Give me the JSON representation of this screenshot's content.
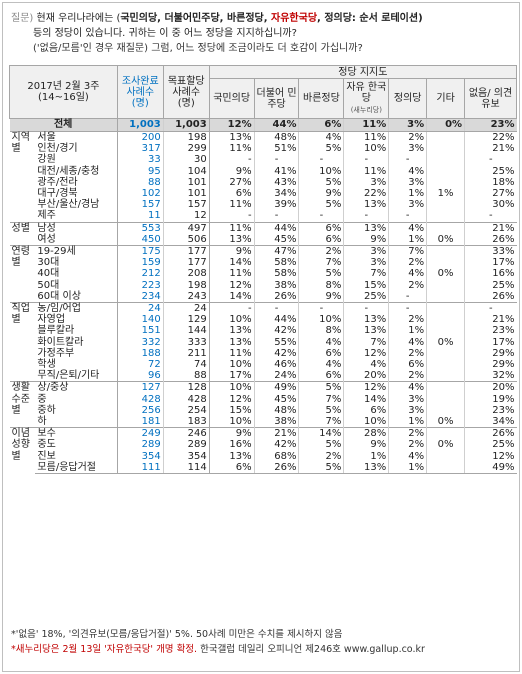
{
  "question": {
    "label": "질문)",
    "line1_plain": "현재 우리나라에는 (",
    "parties": [
      {
        "name": "국민의당",
        "red": false
      },
      {
        "name": "더불어민주당",
        "red": false
      },
      {
        "name": "바른정당",
        "red": false
      },
      {
        "name": "자유한국당",
        "red": true
      },
      {
        "name": "정의당",
        "red": false
      }
    ],
    "line1_tail": ": 순서 로테이션)",
    "line2": "등의 정당이 있습니다. 귀하는 이 중 어느 정당을 지지하십니까?",
    "line3": "('없음/모름'인 경우 재질문) 그럼, 어느 정당에 조금이라도 더 호감이 가십니까?"
  },
  "table": {
    "header": {
      "period_line1": "2017년 2월 3주",
      "period_line2": "(14~16일)",
      "col_complete": "조사완료 사례수 (명)",
      "col_weighted": "목표할당 사례수 (명)",
      "support_group": "정당 지지도",
      "parties": [
        "국민의당",
        "더불어 민주당",
        "바른정당",
        "자유 한국당",
        "정의당",
        "기타",
        "없음/ 의견유보"
      ],
      "jayu_note": "(새누리당)"
    },
    "total": {
      "label": "전체",
      "n": "1,003",
      "w": "1,003",
      "vals": [
        "12%",
        "44%",
        "6%",
        "11%",
        "3%",
        "0%",
        "23%"
      ]
    },
    "groups": [
      {
        "name": "지역별",
        "rows": [
          {
            "label": "서울",
            "n": "200",
            "w": "198",
            "vals": [
              "13%",
              "48%",
              "4%",
              "11%",
              "2%",
              "",
              "22%"
            ]
          },
          {
            "label": "인천/경기",
            "n": "317",
            "w": "299",
            "vals": [
              "11%",
              "51%",
              "5%",
              "10%",
              "3%",
              "",
              "21%"
            ]
          },
          {
            "label": "강원",
            "n": "33",
            "w": "30",
            "vals": [
              "-",
              "-",
              "-",
              "-",
              "-",
              "",
              "-"
            ]
          },
          {
            "label": "대전/세종/충청",
            "n": "95",
            "w": "104",
            "vals": [
              "9%",
              "41%",
              "10%",
              "11%",
              "4%",
              "",
              "25%"
            ]
          },
          {
            "label": "광주/전라",
            "n": "88",
            "w": "101",
            "vals": [
              "27%",
              "43%",
              "5%",
              "3%",
              "3%",
              "",
              "18%"
            ]
          },
          {
            "label": "대구/경북",
            "n": "102",
            "w": "101",
            "vals": [
              "6%",
              "34%",
              "9%",
              "22%",
              "1%",
              "1%",
              "27%"
            ]
          },
          {
            "label": "부산/울산/경남",
            "n": "157",
            "w": "157",
            "vals": [
              "11%",
              "39%",
              "5%",
              "13%",
              "3%",
              "",
              "30%"
            ]
          },
          {
            "label": "제주",
            "n": "11",
            "w": "12",
            "vals": [
              "-",
              "-",
              "-",
              "-",
              "-",
              "",
              "-"
            ]
          }
        ]
      },
      {
        "name": "성별",
        "rows": [
          {
            "label": "남성",
            "n": "553",
            "w": "497",
            "vals": [
              "11%",
              "44%",
              "6%",
              "13%",
              "4%",
              "",
              "21%"
            ]
          },
          {
            "label": "여성",
            "n": "450",
            "w": "506",
            "vals": [
              "13%",
              "45%",
              "6%",
              "9%",
              "1%",
              "0%",
              "26%"
            ]
          }
        ]
      },
      {
        "name": "연령별",
        "rows": [
          {
            "label": "19-29세",
            "n": "175",
            "w": "177",
            "vals": [
              "9%",
              "47%",
              "2%",
              "3%",
              "7%",
              "",
              "33%"
            ]
          },
          {
            "label": "30대",
            "n": "159",
            "w": "177",
            "vals": [
              "14%",
              "58%",
              "7%",
              "3%",
              "2%",
              "",
              "17%"
            ]
          },
          {
            "label": "40대",
            "n": "212",
            "w": "208",
            "vals": [
              "11%",
              "58%",
              "5%",
              "7%",
              "4%",
              "0%",
              "16%"
            ]
          },
          {
            "label": "50대",
            "n": "223",
            "w": "198",
            "vals": [
              "12%",
              "38%",
              "8%",
              "15%",
              "2%",
              "",
              "25%"
            ]
          },
          {
            "label": "60대 이상",
            "n": "234",
            "w": "243",
            "vals": [
              "14%",
              "26%",
              "9%",
              "25%",
              "-",
              "",
              "26%"
            ]
          }
        ]
      },
      {
        "name": "직업별",
        "rows": [
          {
            "label": "농/임/어업",
            "n": "24",
            "w": "24",
            "vals": [
              "-",
              "-",
              "-",
              "-",
              "-",
              "",
              "-"
            ]
          },
          {
            "label": "자영업",
            "n": "140",
            "w": "129",
            "vals": [
              "10%",
              "44%",
              "10%",
              "13%",
              "2%",
              "",
              "21%"
            ]
          },
          {
            "label": "블루칼라",
            "n": "151",
            "w": "144",
            "vals": [
              "13%",
              "42%",
              "8%",
              "13%",
              "1%",
              "",
              "23%"
            ]
          },
          {
            "label": "화이트칼라",
            "n": "332",
            "w": "333",
            "vals": [
              "13%",
              "55%",
              "4%",
              "7%",
              "4%",
              "0%",
              "17%"
            ]
          },
          {
            "label": "가정주부",
            "n": "188",
            "w": "211",
            "vals": [
              "11%",
              "42%",
              "6%",
              "12%",
              "2%",
              "",
              "29%"
            ]
          },
          {
            "label": "학생",
            "n": "72",
            "w": "74",
            "vals": [
              "10%",
              "46%",
              "4%",
              "4%",
              "6%",
              "",
              "29%"
            ]
          },
          {
            "label": "무직/은퇴/기타",
            "n": "96",
            "w": "88",
            "vals": [
              "17%",
              "24%",
              "6%",
              "20%",
              "2%",
              "",
              "32%"
            ]
          }
        ]
      },
      {
        "name": "생활 수준별",
        "rows": [
          {
            "label": "상/중상",
            "n": "127",
            "w": "128",
            "vals": [
              "10%",
              "49%",
              "5%",
              "12%",
              "4%",
              "",
              "20%"
            ]
          },
          {
            "label": "중",
            "n": "428",
            "w": "428",
            "vals": [
              "12%",
              "45%",
              "7%",
              "14%",
              "3%",
              "",
              "19%"
            ]
          },
          {
            "label": "중하",
            "n": "256",
            "w": "254",
            "vals": [
              "15%",
              "48%",
              "5%",
              "6%",
              "3%",
              "",
              "23%"
            ]
          },
          {
            "label": "하",
            "n": "181",
            "w": "183",
            "vals": [
              "10%",
              "38%",
              "7%",
              "10%",
              "1%",
              "0%",
              "34%"
            ]
          }
        ]
      },
      {
        "name": "이념 성향별",
        "rows": [
          {
            "label": "보수",
            "n": "249",
            "w": "246",
            "vals": [
              "9%",
              "21%",
              "14%",
              "28%",
              "2%",
              "",
              "26%"
            ]
          },
          {
            "label": "중도",
            "n": "289",
            "w": "289",
            "vals": [
              "16%",
              "42%",
              "5%",
              "9%",
              "2%",
              "0%",
              "25%"
            ]
          },
          {
            "label": "진보",
            "n": "354",
            "w": "354",
            "vals": [
              "13%",
              "68%",
              "2%",
              "1%",
              "4%",
              "",
              "12%"
            ]
          },
          {
            "label": "모름/응답거절",
            "n": "111",
            "w": "114",
            "vals": [
              "6%",
              "26%",
              "5%",
              "13%",
              "1%",
              "",
              "49%"
            ]
          }
        ]
      }
    ]
  },
  "footnotes": {
    "line1": "*'없음' 18%, '의견유보(모름/응답거절)' 5%. 50사례 미만은 수치를 제시하지 않음",
    "line2_red": "*새누리당은 2월 13일 '자유한국당' 개명 확정.",
    "line2_rest": " 한국갤럽 데일리 오피니언 제246호 www.gallup.co.kr"
  }
}
